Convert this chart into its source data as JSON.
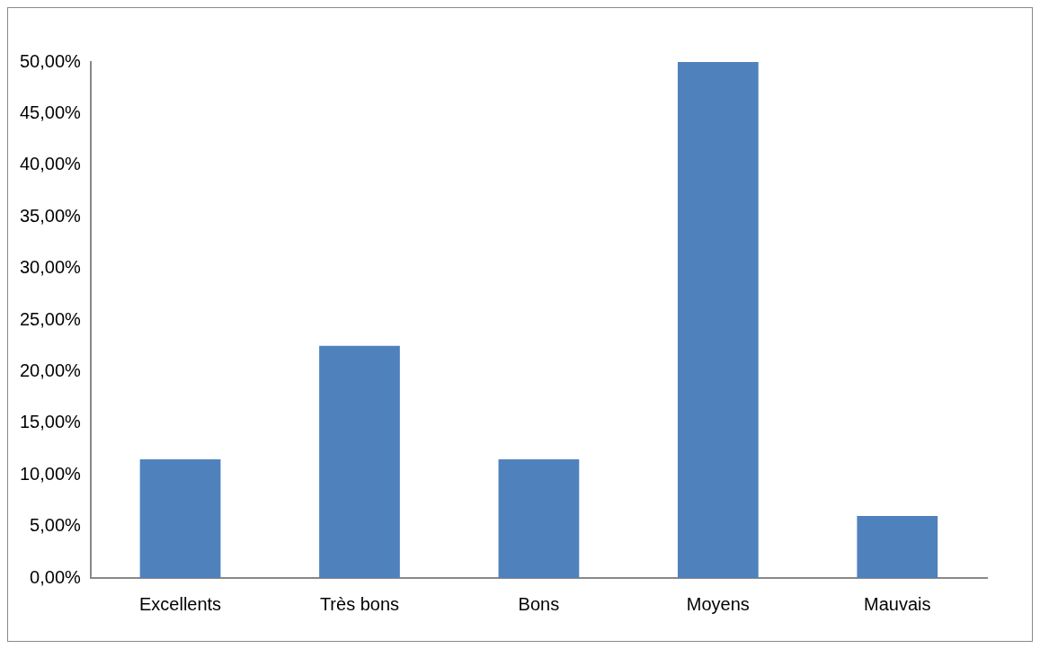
{
  "chart_data": {
    "type": "bar",
    "categories": [
      "Excellents",
      "Très bons",
      "Bons",
      "Moyens",
      "Mauvais"
    ],
    "values": [
      11.5,
      22.5,
      11.5,
      50,
      6
    ],
    "color": "#4f81bd",
    "ylim": [
      0,
      50
    ],
    "yticks": [
      {
        "value": 0,
        "label": "0,00%"
      },
      {
        "value": 5,
        "label": "5,00%"
      },
      {
        "value": 10,
        "label": "10,00%"
      },
      {
        "value": 15,
        "label": "15,00%"
      },
      {
        "value": 20,
        "label": "20,00%"
      },
      {
        "value": 25,
        "label": "25,00%"
      },
      {
        "value": 30,
        "label": "30,00%"
      },
      {
        "value": 35,
        "label": "35,00%"
      },
      {
        "value": 40,
        "label": "40,00%"
      },
      {
        "value": 45,
        "label": "45,00%"
      },
      {
        "value": 50,
        "label": "50,00%"
      }
    ],
    "grid": false,
    "legend": false
  }
}
